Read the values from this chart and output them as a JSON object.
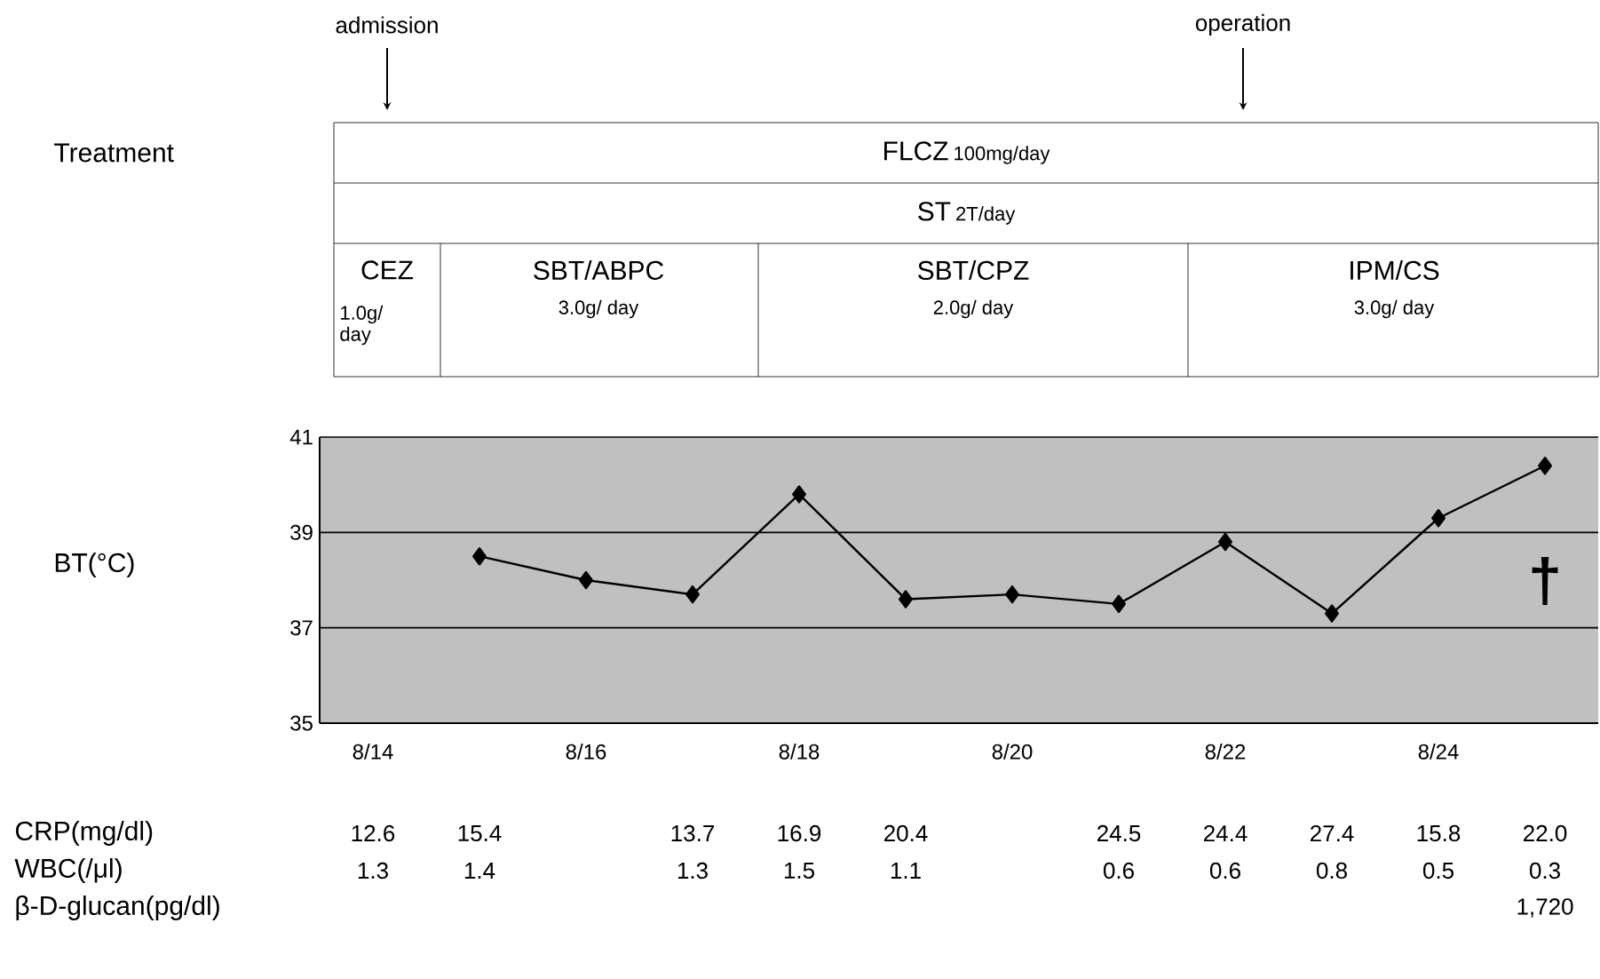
{
  "chart_data": {
    "type": "line",
    "categories": [
      "8/14",
      null,
      "8/16",
      null,
      "8/18",
      null,
      "8/20",
      null,
      "8/22",
      null,
      "8/24",
      null
    ],
    "series": [
      {
        "color": "#000000",
        "values": [
          null,
          38.5,
          38.0,
          37.7,
          39.8,
          37.6,
          37.7,
          37.5,
          38.8,
          37.3,
          39.3,
          40.4
        ]
      }
    ],
    "ylim": [
      35,
      41
    ],
    "yticks": [
      35,
      37,
      39,
      41
    ],
    "grid": "y",
    "marker": "diamond",
    "line_style": "solid",
    "annotations": [
      "admission",
      "operation",
      "Treatment",
      "FLCZ",
      "100mg/day",
      "ST",
      "2T/day",
      "CEZ",
      "1.0g/ day",
      "SBT/ABPC",
      "3.0g/ day",
      "SBT/CPZ",
      "2.0g/ day",
      "IPM/CS",
      "3.0g/ day",
      "†",
      "CRP(mg/dl)",
      "12.6",
      "15.4",
      "13.7",
      "16.9",
      "20.4",
      "24.5",
      "24.4",
      "27.4",
      "15.8",
      "22.0",
      "WBC(/μl)",
      "1.3",
      "1.4",
      "1.3",
      "1.5",
      "1.1",
      "0.6",
      "0.6",
      "0.8",
      "0.5",
      "0.3",
      "β-D-glucan(pg/dl)",
      "1,720",
      "BT(°C)"
    ]
  }
}
